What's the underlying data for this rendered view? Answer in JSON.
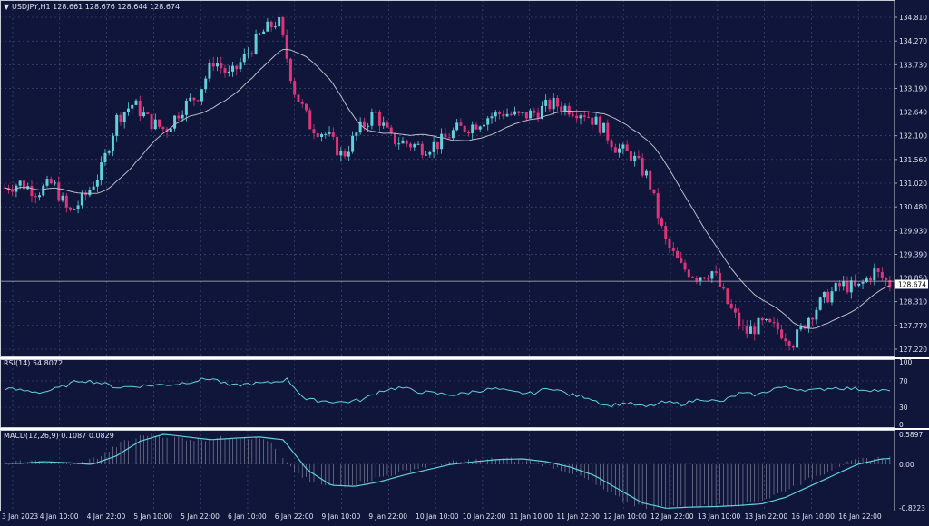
{
  "colors": {
    "background": "#10153a",
    "grid": "#4a5480",
    "frame": "#c8ccd8",
    "bull": "#5fd0dc",
    "bear": "#e0347a",
    "ma": "#b8bcc8",
    "rsi": "#5fd0dc",
    "macd_line": "#5fd0dc",
    "macd_hist": "#c8ccd8",
    "price_tag_bg": "#ffffff",
    "price_tag_fg": "#000000"
  },
  "header": {
    "title": "USDJPY,H1  128.661 128.676 128.644 128.674"
  },
  "price_label": "128.674",
  "chart_data": [
    {
      "type": "candlestick",
      "title": "USDJPY,H1",
      "last_price": 128.674,
      "ylim": [
        126.95,
        135.05
      ],
      "y_ticks": [
        "134.810",
        "134.270",
        "133.730",
        "133.190",
        "132.640",
        "132.100",
        "131.560",
        "131.020",
        "130.480",
        "129.930",
        "129.390",
        "128.850",
        "128.310",
        "127.770",
        "127.220"
      ],
      "x_tick_labels": [
        "3 Jan 2023",
        "4 Jan 10:00",
        "4 Jan 22:00",
        "5 Jan 10:00",
        "5 Jan 22:00",
        "6 Jan 10:00",
        "6 Jan 22:00",
        "9 Jan 10:00",
        "9 Jan 22:00",
        "10 Jan 10:00",
        "10 Jan 22:00",
        "11 Jan 10:00",
        "11 Jan 22:00",
        "12 Jan 10:00",
        "12 Jan 22:00",
        "13 Jan 10:00",
        "13 Jan 22:00",
        "16 Jan 10:00",
        "16 Jan 22:00"
      ],
      "anchors": [
        130.8,
        130.9,
        130.7,
        130.9,
        130.2,
        130.6,
        131.2,
        132.4,
        132.7,
        132.3,
        132.1,
        132.6,
        132.9,
        133.7,
        133.3,
        133.8,
        134.3,
        134.6,
        133.0,
        132.2,
        132.0,
        131.5,
        132.1,
        132.5,
        131.9,
        131.8,
        131.7,
        131.8,
        132.1,
        132.2,
        132.4,
        132.5,
        132.4,
        132.5,
        132.7,
        132.6,
        132.5,
        132.2,
        131.7,
        131.5,
        131.0,
        129.6,
        129.0,
        128.8,
        128.9,
        128.1,
        127.5,
        127.7,
        127.6,
        127.3,
        127.9,
        128.3,
        128.6,
        128.5,
        128.9,
        128.6
      ],
      "n_candles": 230,
      "ma_period": 20
    },
    {
      "type": "line",
      "title": "RSI(14) 54.8072",
      "series_name": "RSI(14)",
      "last_value": 54.8072,
      "ylim": [
        0,
        100
      ],
      "y_ticks": [
        "100",
        "70",
        "30",
        "0"
      ],
      "anchors": [
        58,
        55,
        52,
        60,
        72,
        68,
        60,
        62,
        64,
        65,
        70,
        75,
        62,
        66,
        67,
        73,
        40,
        38,
        36,
        40,
        55,
        60,
        53,
        50,
        48,
        54,
        58,
        52,
        50,
        60,
        48,
        44,
        30,
        35,
        28,
        36,
        33,
        42,
        36,
        50,
        48,
        60,
        58,
        55,
        60,
        58,
        56,
        54
      ]
    },
    {
      "type": "histogram+line",
      "title": "MACD(12,26,9) 0.1087 0.0829",
      "series_name": "MACD(12,26,9)",
      "last_main": 0.1087,
      "last_signal": 0.0829,
      "ylim": [
        -0.86,
        0.63
      ],
      "y_ticks": [
        "0.5897",
        "0.00",
        "-0.8223"
      ],
      "anchors": [
        0.02,
        0.05,
        0.03,
        0.0,
        0.15,
        0.42,
        0.55,
        0.5,
        0.45,
        0.48,
        0.5,
        0.45,
        -0.1,
        -0.38,
        -0.4,
        -0.32,
        -0.2,
        -0.1,
        0.0,
        0.05,
        0.09,
        0.1,
        0.05,
        -0.05,
        -0.2,
        -0.45,
        -0.7,
        -0.8,
        -0.78,
        -0.77,
        -0.75,
        -0.72,
        -0.6,
        -0.4,
        -0.2,
        0.0,
        0.1,
        0.12
      ]
    }
  ]
}
